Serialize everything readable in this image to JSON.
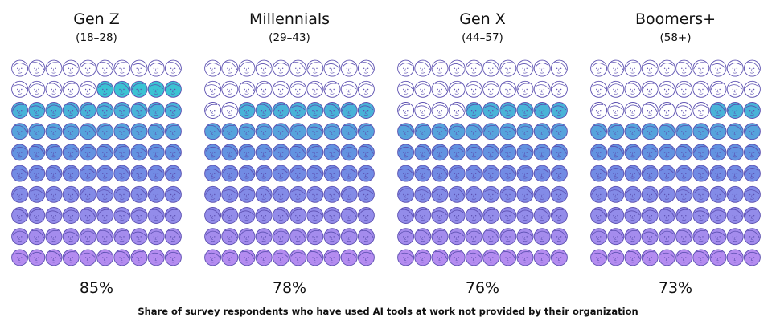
{
  "chart_data": {
    "type": "pictogram",
    "unit": "percent",
    "caption": "Share of survey respondents who have used AI tools at work not provided by their organization",
    "icons_per_chart": 100,
    "series": [
      {
        "name": "Gen Z",
        "age_range": "(18–28)",
        "value": 85,
        "label": "85%"
      },
      {
        "name": "Millennials",
        "age_range": "(29–43)",
        "value": 78,
        "label": "78%"
      },
      {
        "name": "Gen X",
        "age_range": "(44–57)",
        "value": 76,
        "label": "76%"
      },
      {
        "name": "Boomers+",
        "age_range": "(58+)",
        "value": 73,
        "label": "73%"
      }
    ],
    "colors": {
      "outline": "#5b4fb0",
      "fill_top": "#2ed3cf",
      "fill_mid": "#6a8be3",
      "fill_bottom": "#b48cf0",
      "empty_fill": "#ffffff"
    }
  }
}
